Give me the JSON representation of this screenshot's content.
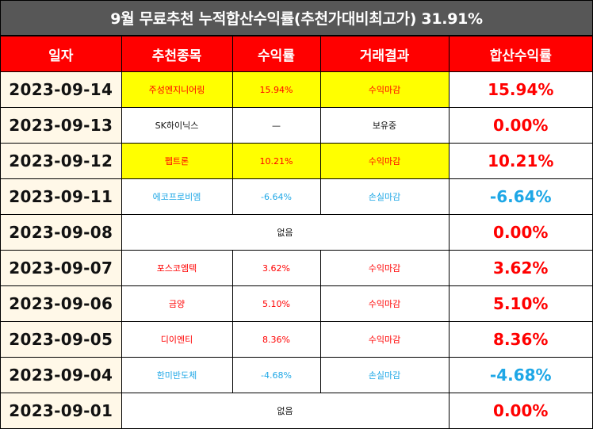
{
  "title": "9월 무료추천 누적합산수익률(추천가대비최고가) 31.91%",
  "headers": [
    "일자",
    "추천종목",
    "수익률",
    "거래결과",
    "합산수익률"
  ],
  "rows": [
    {
      "date": "2023-09-14",
      "stock": "주성엔지니어링",
      "rate": "15.94%",
      "result": "수익마감",
      "total": "15.94%",
      "color": "red",
      "highlight": true
    },
    {
      "date": "2023-09-13",
      "stock": "SK하이닉스",
      "rate": "—",
      "result": "보유중",
      "total": "0.00%",
      "color": "black",
      "highlight": false
    },
    {
      "date": "2023-09-12",
      "stock": "펩트론",
      "rate": "10.21%",
      "result": "수익마감",
      "total": "10.21%",
      "color": "red",
      "highlight": true
    },
    {
      "date": "2023-09-11",
      "stock": "에코프로비엠",
      "rate": "-6.64%",
      "result": "손실마감",
      "total": "-6.64%",
      "color": "blue",
      "highlight": false
    },
    {
      "date": "2023-09-08",
      "none": "없음",
      "total": "0.00%"
    },
    {
      "date": "2023-09-07",
      "stock": "포스코엠텍",
      "rate": "3.62%",
      "result": "수익마감",
      "total": "3.62%",
      "color": "red",
      "highlight": false
    },
    {
      "date": "2023-09-06",
      "stock": "금양",
      "rate": "5.10%",
      "result": "수익마감",
      "total": "5.10%",
      "color": "red",
      "highlight": false
    },
    {
      "date": "2023-09-05",
      "stock": "디이엔티",
      "rate": "8.36%",
      "result": "수익마감",
      "total": "8.36%",
      "color": "red",
      "highlight": false
    },
    {
      "date": "2023-09-04",
      "stock": "한미반도체",
      "rate": "-4.68%",
      "result": "손실마감",
      "total": "-4.68%",
      "color": "blue",
      "highlight": false
    },
    {
      "date": "2023-09-01",
      "none": "없음",
      "total": "0.00%"
    }
  ],
  "colors": {
    "header_bg": "#ff0000",
    "title_bg": "#575757",
    "highlight": "#ffff00",
    "profit": "#ff0000",
    "loss": "#1ea7e6",
    "date_bg": "#fff8e8"
  }
}
